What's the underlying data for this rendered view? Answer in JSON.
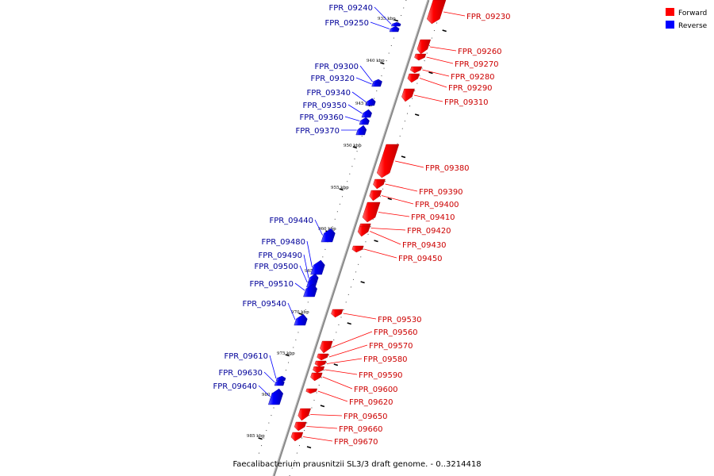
{
  "legend": {
    "items": [
      {
        "label": "Forward",
        "color": "#ff0000"
      },
      {
        "label": "Reverse",
        "color": "#0000ff"
      }
    ]
  },
  "caption": "Faecalibacterium prausnitzii SL3/3 draft genome. - 0..3214418",
  "colors": {
    "forward": "#ff0000",
    "reverse": "#0000ff",
    "backbone": "#808080",
    "forward_label": "#cc0000",
    "reverse_label": "#000099"
  },
  "kbp_ticks": [
    "935 kbp",
    "940 kbp",
    "945 kbp",
    "950 kbp",
    "955 kbp",
    "960 kbp",
    "965 kbp",
    "970 kbp",
    "975 kbp",
    "980 kbp",
    "985 kbp"
  ],
  "forward_genes": [
    {
      "id": "FPR_09230"
    },
    {
      "id": "FPR_09260"
    },
    {
      "id": "FPR_09270"
    },
    {
      "id": "FPR_09280"
    },
    {
      "id": "FPR_09290"
    },
    {
      "id": "FPR_09310"
    },
    {
      "id": "FPR_09380"
    },
    {
      "id": "FPR_09390"
    },
    {
      "id": "FPR_09400"
    },
    {
      "id": "FPR_09410"
    },
    {
      "id": "FPR_09420"
    },
    {
      "id": "FPR_09430"
    },
    {
      "id": "FPR_09450"
    },
    {
      "id": "FPR_09530"
    },
    {
      "id": "FPR_09560"
    },
    {
      "id": "FPR_09570"
    },
    {
      "id": "FPR_09580"
    },
    {
      "id": "FPR_09590"
    },
    {
      "id": "FPR_09600"
    },
    {
      "id": "FPR_09620"
    },
    {
      "id": "FPR_09650"
    },
    {
      "id": "FPR_09660"
    },
    {
      "id": "FPR_09670"
    }
  ],
  "reverse_genes": [
    {
      "id": "FPR_09240"
    },
    {
      "id": "FPR_09250"
    },
    {
      "id": "FPR_09300"
    },
    {
      "id": "FPR_09320"
    },
    {
      "id": "FPR_09340"
    },
    {
      "id": "FPR_09350"
    },
    {
      "id": "FPR_09360"
    },
    {
      "id": "FPR_09370"
    },
    {
      "id": "FPR_09440"
    },
    {
      "id": "FPR_09480"
    },
    {
      "id": "FPR_09490"
    },
    {
      "id": "FPR_09500"
    },
    {
      "id": "FPR_09510"
    },
    {
      "id": "FPR_09540"
    },
    {
      "id": "FPR_09610"
    },
    {
      "id": "FPR_09630"
    },
    {
      "id": "FPR_09640"
    }
  ]
}
